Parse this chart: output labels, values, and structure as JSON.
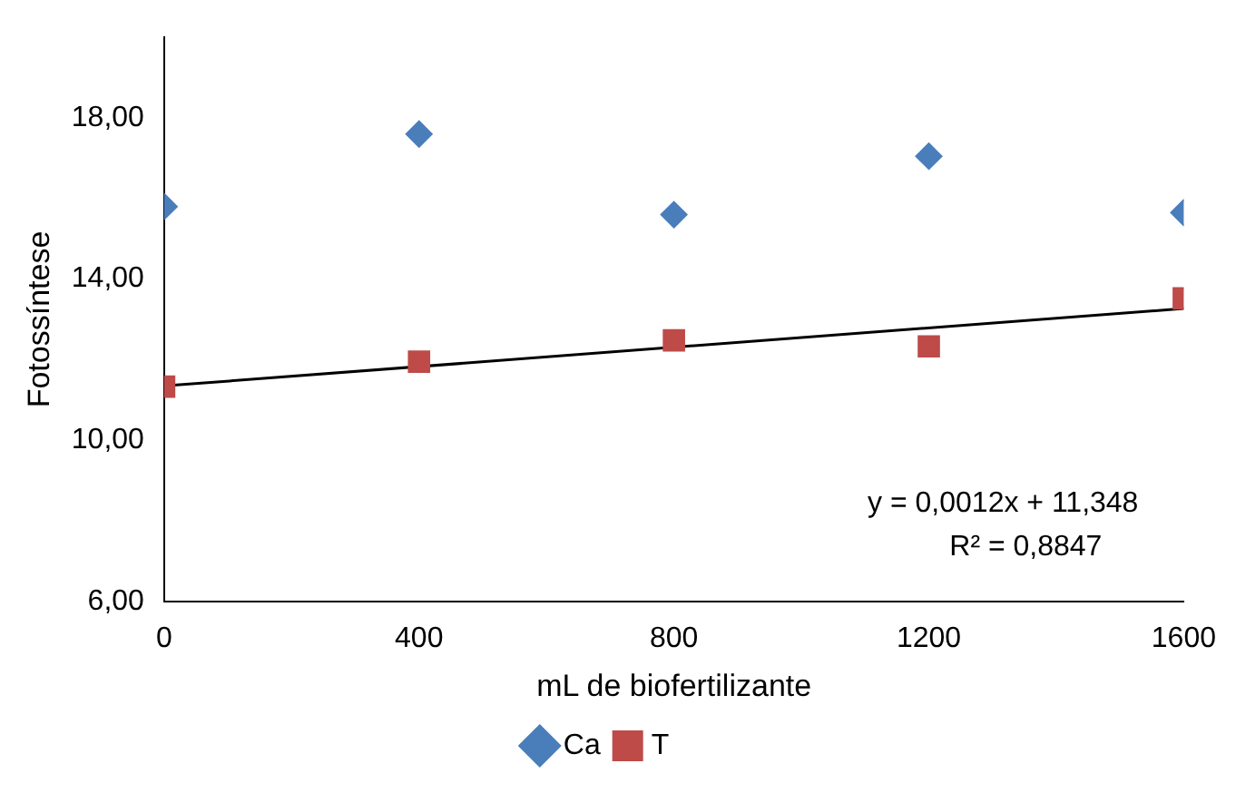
{
  "chart_data": {
    "type": "scatter",
    "xlabel": "mL de biofertilizante",
    "ylabel": "Fotossíntese",
    "x": [
      0,
      400,
      800,
      1200,
      1600
    ],
    "series": [
      {
        "name": "Ca",
        "color": "#4a7ebb",
        "marker": "diamond",
        "values": [
          15.8,
          17.6,
          15.6,
          17.05,
          15.65
        ]
      },
      {
        "name": "T",
        "color": "#be4b48",
        "marker": "square",
        "values": [
          11.33,
          11.95,
          12.48,
          12.33,
          13.52
        ]
      },
      {
        "type": "line",
        "color": "#000000",
        "marker": "none",
        "x": [
          0,
          1600
        ],
        "values": [
          11.348,
          13.268
        ]
      }
    ],
    "xlim": [
      0,
      1600
    ],
    "xticks": [
      0,
      400,
      800,
      1200,
      1600
    ],
    "ylim": [
      6,
      20
    ],
    "yticks": [
      {
        "value": 6,
        "label": "6,00"
      },
      {
        "value": 10,
        "label": "10,00"
      },
      {
        "value": 14,
        "label": "14,00"
      },
      {
        "value": 18,
        "label": "18,00"
      }
    ],
    "annotations": [
      "y = 0,0012x + 11,348",
      "R² = 0,8847"
    ],
    "grid": false,
    "legend": "bottom"
  }
}
